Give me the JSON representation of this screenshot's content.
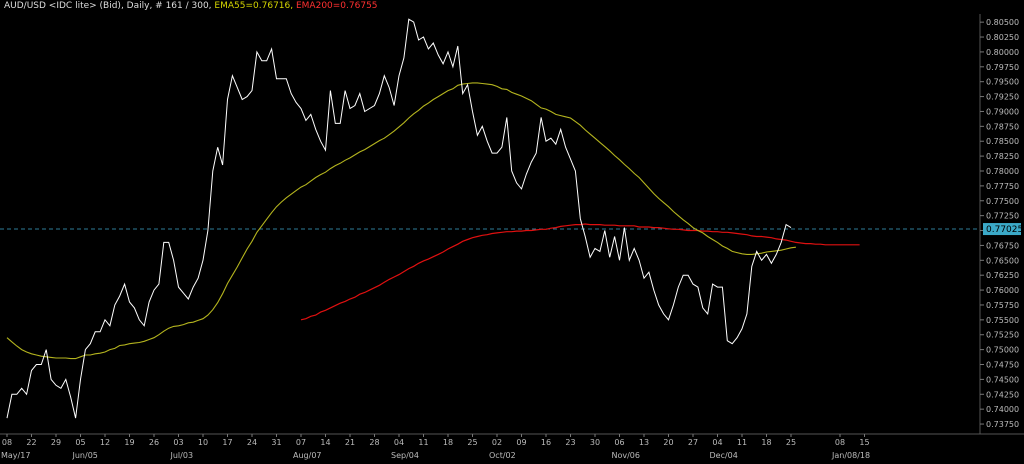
{
  "header": {
    "instrument": "AUD/USD <IDC lite> (Bid), Daily, # 161 / 300,",
    "ema55_label": "EMA55=0.76716,",
    "ema200_label": "EMA200=0.76755"
  },
  "colors": {
    "background": "#000000",
    "price": "#ffffff",
    "ema55": "#b4b41e",
    "ema200": "#e01010",
    "current_line": "#2e7d99",
    "current_badge": "#3ba9c8",
    "axis": "#555555",
    "text": "#bbbbbb"
  },
  "chart_data": {
    "type": "line",
    "ylim": [
      0.7365,
      0.8062
    ],
    "xlim": [
      0,
      178
    ],
    "y_ticks": [
      "0.73750",
      "0.74000",
      "0.74250",
      "0.74500",
      "0.74750",
      "0.75000",
      "0.75250",
      "0.75500",
      "0.75750",
      "0.76000",
      "0.76250",
      "0.76500",
      "0.76750",
      "0.77000",
      "0.77250",
      "0.77500",
      "0.77750",
      "0.78000",
      "0.78250",
      "0.78500",
      "0.78750",
      "0.79000",
      "0.79250",
      "0.79500",
      "0.79750",
      "0.80000",
      "0.80250",
      "0.80500"
    ],
    "x_day_labels": [
      {
        "i": 0,
        "t": "08"
      },
      {
        "i": 5,
        "t": "22"
      },
      {
        "i": 10,
        "t": "29"
      },
      {
        "i": 15,
        "t": "05"
      },
      {
        "i": 20,
        "t": "12"
      },
      {
        "i": 25,
        "t": "19"
      },
      {
        "i": 30,
        "t": "26"
      },
      {
        "i": 35,
        "t": "03"
      },
      {
        "i": 40,
        "t": "10"
      },
      {
        "i": 45,
        "t": "17"
      },
      {
        "i": 50,
        "t": "24"
      },
      {
        "i": 55,
        "t": "31"
      },
      {
        "i": 60,
        "t": "07"
      },
      {
        "i": 65,
        "t": "14"
      },
      {
        "i": 70,
        "t": "21"
      },
      {
        "i": 75,
        "t": "28"
      },
      {
        "i": 80,
        "t": "04"
      },
      {
        "i": 85,
        "t": "11"
      },
      {
        "i": 90,
        "t": "18"
      },
      {
        "i": 95,
        "t": "25"
      },
      {
        "i": 100,
        "t": "02"
      },
      {
        "i": 105,
        "t": "09"
      },
      {
        "i": 110,
        "t": "16"
      },
      {
        "i": 115,
        "t": "23"
      },
      {
        "i": 120,
        "t": "30"
      },
      {
        "i": 125,
        "t": "06"
      },
      {
        "i": 130,
        "t": "13"
      },
      {
        "i": 135,
        "t": "20"
      },
      {
        "i": 140,
        "t": "27"
      },
      {
        "i": 145,
        "t": "04"
      },
      {
        "i": 150,
        "t": "11"
      },
      {
        "i": 155,
        "t": "18"
      },
      {
        "i": 160,
        "t": "25"
      },
      {
        "i": 170,
        "t": "08"
      },
      {
        "i": 175,
        "t": "15"
      }
    ],
    "x_month_labels": [
      {
        "i": 0,
        "t": "May/17"
      },
      {
        "i": 15,
        "t": "Jun/05"
      },
      {
        "i": 35,
        "t": "Jul/03"
      },
      {
        "i": 60,
        "t": "Aug/07"
      },
      {
        "i": 80,
        "t": "Sep/04"
      },
      {
        "i": 100,
        "t": "Oct/02"
      },
      {
        "i": 125,
        "t": "Nov/06"
      },
      {
        "i": 145,
        "t": "Dec/04"
      },
      {
        "i": 170,
        "t": "Jan/08/18"
      }
    ],
    "current_value": "0.77025",
    "series": [
      {
        "name": "AUD/USD",
        "values": [
          0.7385,
          0.7425,
          0.7425,
          0.7435,
          0.7425,
          0.7465,
          0.7475,
          0.7475,
          0.75,
          0.745,
          0.744,
          0.7435,
          0.745,
          0.742,
          0.7385,
          0.745,
          0.75,
          0.751,
          0.753,
          0.753,
          0.755,
          0.754,
          0.7575,
          0.759,
          0.761,
          0.758,
          0.757,
          0.755,
          0.754,
          0.758,
          0.76,
          0.761,
          0.768,
          0.768,
          0.765,
          0.7605,
          0.7595,
          0.7585,
          0.7605,
          0.762,
          0.765,
          0.77,
          0.78,
          0.784,
          0.781,
          0.792,
          0.796,
          0.794,
          0.792,
          0.7925,
          0.7935,
          0.8,
          0.7985,
          0.7985,
          0.8005,
          0.7955,
          0.7955,
          0.7955,
          0.793,
          0.7915,
          0.7905,
          0.7885,
          0.7895,
          0.787,
          0.785,
          0.7835,
          0.7935,
          0.788,
          0.788,
          0.7935,
          0.7905,
          0.791,
          0.793,
          0.79,
          0.7905,
          0.791,
          0.793,
          0.796,
          0.794,
          0.791,
          0.796,
          0.799,
          0.8055,
          0.805,
          0.802,
          0.8025,
          0.8005,
          0.8015,
          0.7995,
          0.798,
          0.8,
          0.7975,
          0.801,
          0.793,
          0.7945,
          0.79,
          0.786,
          0.7875,
          0.785,
          0.783,
          0.783,
          0.784,
          0.789,
          0.78,
          0.778,
          0.777,
          0.7795,
          0.7815,
          0.783,
          0.789,
          0.785,
          0.7855,
          0.7845,
          0.787,
          0.784,
          0.782,
          0.78,
          0.772,
          0.769,
          0.7655,
          0.767,
          0.7665,
          0.77,
          0.7655,
          0.769,
          0.765,
          0.7705,
          0.765,
          0.767,
          0.765,
          0.762,
          0.763,
          0.76,
          0.7575,
          0.756,
          0.755,
          0.7575,
          0.7605,
          0.7625,
          0.7625,
          0.761,
          0.7605,
          0.757,
          0.756,
          0.761,
          0.7605,
          0.7605,
          0.7515,
          0.751,
          0.752,
          0.7535,
          0.756,
          0.764,
          0.7665,
          0.765,
          0.766,
          0.7645,
          0.766,
          0.768,
          0.771,
          0.7705
        ]
      },
      {
        "name": "EMA55",
        "values": [
          0.752,
          0.7513,
          0.7506,
          0.75,
          0.7496,
          0.7493,
          0.7491,
          0.7489,
          0.7488,
          0.7487,
          0.7486,
          0.7486,
          0.7486,
          0.7485,
          0.7485,
          0.7488,
          0.7491,
          0.7491,
          0.7493,
          0.7494,
          0.7496,
          0.75,
          0.7502,
          0.7507,
          0.7508,
          0.751,
          0.7511,
          0.7512,
          0.7514,
          0.7517,
          0.752,
          0.7525,
          0.7531,
          0.7536,
          0.7539,
          0.754,
          0.7542,
          0.7545,
          0.7546,
          0.7549,
          0.7552,
          0.7558,
          0.7567,
          0.7579,
          0.7594,
          0.7611,
          0.7625,
          0.7639,
          0.7654,
          0.7669,
          0.7682,
          0.7697,
          0.7708,
          0.7719,
          0.773,
          0.774,
          0.7748,
          0.7755,
          0.7761,
          0.7767,
          0.7773,
          0.7777,
          0.7783,
          0.7789,
          0.7794,
          0.7798,
          0.7804,
          0.7809,
          0.7813,
          0.7818,
          0.7822,
          0.7827,
          0.7832,
          0.7836,
          0.7841,
          0.7846,
          0.7851,
          0.7855,
          0.7861,
          0.7867,
          0.7874,
          0.7881,
          0.7889,
          0.7896,
          0.7902,
          0.7909,
          0.7914,
          0.792,
          0.7925,
          0.793,
          0.7935,
          0.7938,
          0.7944,
          0.7946,
          0.7947,
          0.7948,
          0.7948,
          0.7947,
          0.7946,
          0.7945,
          0.7942,
          0.7938,
          0.7937,
          0.7932,
          0.7929,
          0.7926,
          0.7922,
          0.7918,
          0.7912,
          0.7906,
          0.7904,
          0.79,
          0.7895,
          0.7893,
          0.7891,
          0.7889,
          0.7883,
          0.7877,
          0.7869,
          0.7862,
          0.7855,
          0.7848,
          0.7841,
          0.7834,
          0.7826,
          0.7819,
          0.7811,
          0.7804,
          0.7796,
          0.7789,
          0.778,
          0.7771,
          0.7762,
          0.7754,
          0.7747,
          0.774,
          0.7732,
          0.7725,
          0.7718,
          0.7712,
          0.7705,
          0.77,
          0.7696,
          0.769,
          0.7685,
          0.768,
          0.7674,
          0.767,
          0.7665,
          0.7663,
          0.7661,
          0.766,
          0.766,
          0.7661,
          0.7662,
          0.7664,
          0.7665,
          0.7666,
          0.7667,
          0.7669,
          0.7671,
          0.7672
        ]
      },
      {
        "name": "EMA200",
        "x_start": 60,
        "values": [
          0.755,
          0.7552,
          0.7556,
          0.7558,
          0.7563,
          0.7566,
          0.757,
          0.7574,
          0.7578,
          0.7581,
          0.7585,
          0.7588,
          0.7593,
          0.7596,
          0.76,
          0.7604,
          0.7608,
          0.7613,
          0.7618,
          0.7622,
          0.7626,
          0.7631,
          0.7636,
          0.764,
          0.7645,
          0.7649,
          0.7652,
          0.7656,
          0.766,
          0.7664,
          0.7669,
          0.7673,
          0.7677,
          0.7682,
          0.7685,
          0.7688,
          0.769,
          0.7692,
          0.7693,
          0.7695,
          0.7696,
          0.7697,
          0.7698,
          0.7698,
          0.7699,
          0.7699,
          0.77,
          0.77,
          0.7701,
          0.7702,
          0.7702,
          0.7704,
          0.7705,
          0.7707,
          0.7708,
          0.7709,
          0.771,
          0.771,
          0.7711,
          0.771,
          0.771,
          0.771,
          0.7709,
          0.7709,
          0.7709,
          0.7708,
          0.7708,
          0.7708,
          0.7708,
          0.7706,
          0.7706,
          0.7706,
          0.7705,
          0.7705,
          0.7704,
          0.7703,
          0.7702,
          0.7702,
          0.7701,
          0.77,
          0.77,
          0.77,
          0.7699,
          0.7699,
          0.7698,
          0.7698,
          0.7697,
          0.7697,
          0.7696,
          0.7695,
          0.7694,
          0.7693,
          0.7691,
          0.769,
          0.769,
          0.7689,
          0.7688,
          0.7686,
          0.7685,
          0.7684,
          0.7682,
          0.768,
          0.7679,
          0.7678,
          0.7678,
          0.7677,
          0.7677,
          0.7676,
          0.7676,
          0.7676,
          0.7676,
          0.7676,
          0.7676,
          0.7676,
          0.7676
        ]
      }
    ]
  }
}
